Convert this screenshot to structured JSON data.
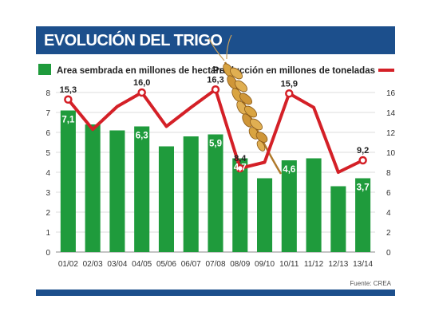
{
  "header": {
    "title": "EVOLUCIÓN DEL TRIGO"
  },
  "legend": {
    "bars_label": "Area sembrada en millones de hectáreas",
    "line_label": "Producción en millones de toneladas"
  },
  "source": "Fuente: CREA",
  "colors": {
    "header": "#1c4f8c",
    "bars": "#1f9b3c",
    "line": "#d42027",
    "grid": "#dcdcdc"
  },
  "decoration": {
    "icon": "wheat-ear-icon"
  },
  "chart_data": {
    "type": "bar",
    "categories": [
      "01/02",
      "02/03",
      "03/04",
      "04/05",
      "05/06",
      "06/07",
      "07/08",
      "08/09",
      "09/10",
      "10/11",
      "11/12",
      "12/13",
      "13/14"
    ],
    "grid": true,
    "bar_series": {
      "name": "Area sembrada en millones de hectáreas",
      "values": [
        7.1,
        6.4,
        6.1,
        6.3,
        5.3,
        5.8,
        5.9,
        4.7,
        3.7,
        4.6,
        4.7,
        3.3,
        3.7
      ],
      "labels": [
        "7,1",
        "",
        "",
        "6,3",
        "",
        "",
        "5,9",
        "4,7",
        "",
        "4,6",
        "",
        "",
        "3,7"
      ],
      "axis": {
        "side": "left",
        "min": 0,
        "max": 8,
        "ticks": [
          "0",
          "1",
          "2",
          "3",
          "4",
          "5",
          "6",
          "7",
          "8"
        ]
      }
    },
    "line_series": {
      "name": "Producción en millones de toneladas",
      "type": "line",
      "values": [
        15.3,
        12.3,
        14.6,
        16.0,
        12.6,
        14.5,
        16.3,
        8.4,
        9.0,
        15.9,
        14.5,
        8.0,
        9.2
      ],
      "labels": [
        "15,3",
        "",
        "",
        "16,0",
        "",
        "",
        "16,3",
        "8,4",
        "",
        "15,9",
        "",
        "",
        "9,2"
      ],
      "axis": {
        "side": "right",
        "min": 0,
        "max": 16,
        "ticks": [
          "0",
          "2",
          "4",
          "6",
          "8",
          "10",
          "12",
          "14",
          "16"
        ]
      }
    }
  }
}
